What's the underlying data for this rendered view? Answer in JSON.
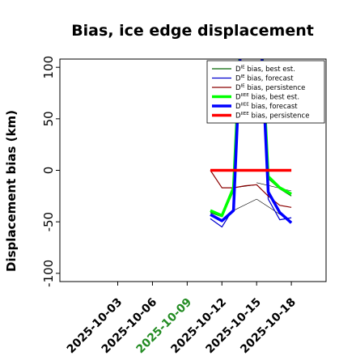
{
  "chart_data": {
    "type": "line",
    "title": "Bias, ice edge displacement",
    "ylabel": "Displacement bias (km)",
    "xlabel": "",
    "ylim": [
      -108,
      108
    ],
    "xlim": [
      "2025-09-28",
      "2025-10-21"
    ],
    "yticks": [
      -100,
      -50,
      0,
      50,
      100
    ],
    "xticks": [
      "2025-10-03",
      "2025-10-06",
      "2025-10-09",
      "2025-10-12",
      "2025-10-15",
      "2025-10-18"
    ],
    "highlighted_xtick": "2025-10-09",
    "highlight_color": "#228b22",
    "grid": false,
    "legend_position": "top-right",
    "series": [
      {
        "name": "D^IE bias, best est.",
        "legend_base": "D",
        "legend_sup": "IE",
        "legend_rest": " bias, best est.",
        "color": "#006400",
        "width": 1.2,
        "x": [
          "2025-10-11",
          "2025-10-12",
          "2025-10-13",
          "2025-10-14",
          "2025-10-15",
          "2025-10-16",
          "2025-10-17",
          "2025-10-18"
        ],
        "y": [
          -41,
          -45,
          -20,
          220,
          220,
          -8,
          -18,
          -25
        ]
      },
      {
        "name": "D^IE bias, forecast",
        "legend_base": "D",
        "legend_sup": "IE",
        "legend_rest": " bias, forecast",
        "color": "#0000cd",
        "width": 1.2,
        "x": [
          "2025-10-11",
          "2025-10-12",
          "2025-10-13",
          "2025-10-14",
          "2025-10-15",
          "2025-10-16",
          "2025-10-17",
          "2025-10-18"
        ],
        "y": [
          -47,
          -55,
          -37,
          220,
          220,
          -28,
          -48,
          -46
        ]
      },
      {
        "name": "D^IE bias, persistence",
        "legend_base": "D",
        "legend_sup": "IE",
        "legend_rest": " bias, persistence",
        "color": "#8b0000",
        "width": 1.2,
        "x": [
          "2025-10-11",
          "2025-10-12",
          "2025-10-13",
          "2025-10-14",
          "2025-10-15",
          "2025-10-16",
          "2025-10-17",
          "2025-10-18"
        ],
        "y": [
          0,
          -17,
          -17,
          -15,
          -14,
          -25,
          -34,
          -36
        ]
      },
      {
        "name": "D^IIEE bias, best est.",
        "legend_base": "D",
        "legend_sup": "IIEE",
        "legend_rest": " bias, best est.",
        "color": "#00ff00",
        "width": 3.5,
        "x": [
          "2025-10-11",
          "2025-10-12",
          "2025-10-13",
          "2025-10-14",
          "2025-10-15",
          "2025-10-16",
          "2025-10-17",
          "2025-10-18"
        ],
        "y": [
          -39,
          -44,
          -17,
          220,
          220,
          -6,
          -17,
          -23
        ]
      },
      {
        "name": "D^IIEE bias, forecast",
        "legend_base": "D",
        "legend_sup": "IIEE",
        "legend_rest": " bias, forecast",
        "color": "#0000ff",
        "width": 3.5,
        "x": [
          "2025-10-11",
          "2025-10-12",
          "2025-10-13",
          "2025-10-14",
          "2025-10-15",
          "2025-10-16",
          "2025-10-17",
          "2025-10-18"
        ],
        "y": [
          -43,
          -49,
          -39,
          220,
          220,
          -21,
          -41,
          -51
        ]
      },
      {
        "name": "D^IIEE bias, persistence",
        "legend_base": "D",
        "legend_sup": "IIEE",
        "legend_rest": " bias, persistence",
        "color": "#ff0000",
        "width": 3.5,
        "x": [
          "2025-10-11",
          "2025-10-12",
          "2025-10-13",
          "2025-10-14",
          "2025-10-15",
          "2025-10-16",
          "2025-10-17",
          "2025-10-18"
        ],
        "y": [
          0,
          0,
          0,
          0,
          0,
          0,
          0,
          0
        ]
      }
    ],
    "connector_lines": [
      {
        "color": "#000000",
        "x": [
          "2025-10-13",
          "2025-10-15"
        ],
        "y": [
          -17,
          -14
        ]
      },
      {
        "color": "#000000",
        "x": [
          "2025-10-13",
          "2025-10-15"
        ],
        "y": [
          -39,
          -28
        ]
      },
      {
        "color": "#000000",
        "x": [
          "2025-10-15",
          "2025-10-18"
        ],
        "y": [
          -28,
          -50
        ]
      },
      {
        "color": "#000000",
        "x": [
          "2025-10-15",
          "2025-10-18"
        ],
        "y": [
          -12,
          -20
        ]
      }
    ]
  }
}
